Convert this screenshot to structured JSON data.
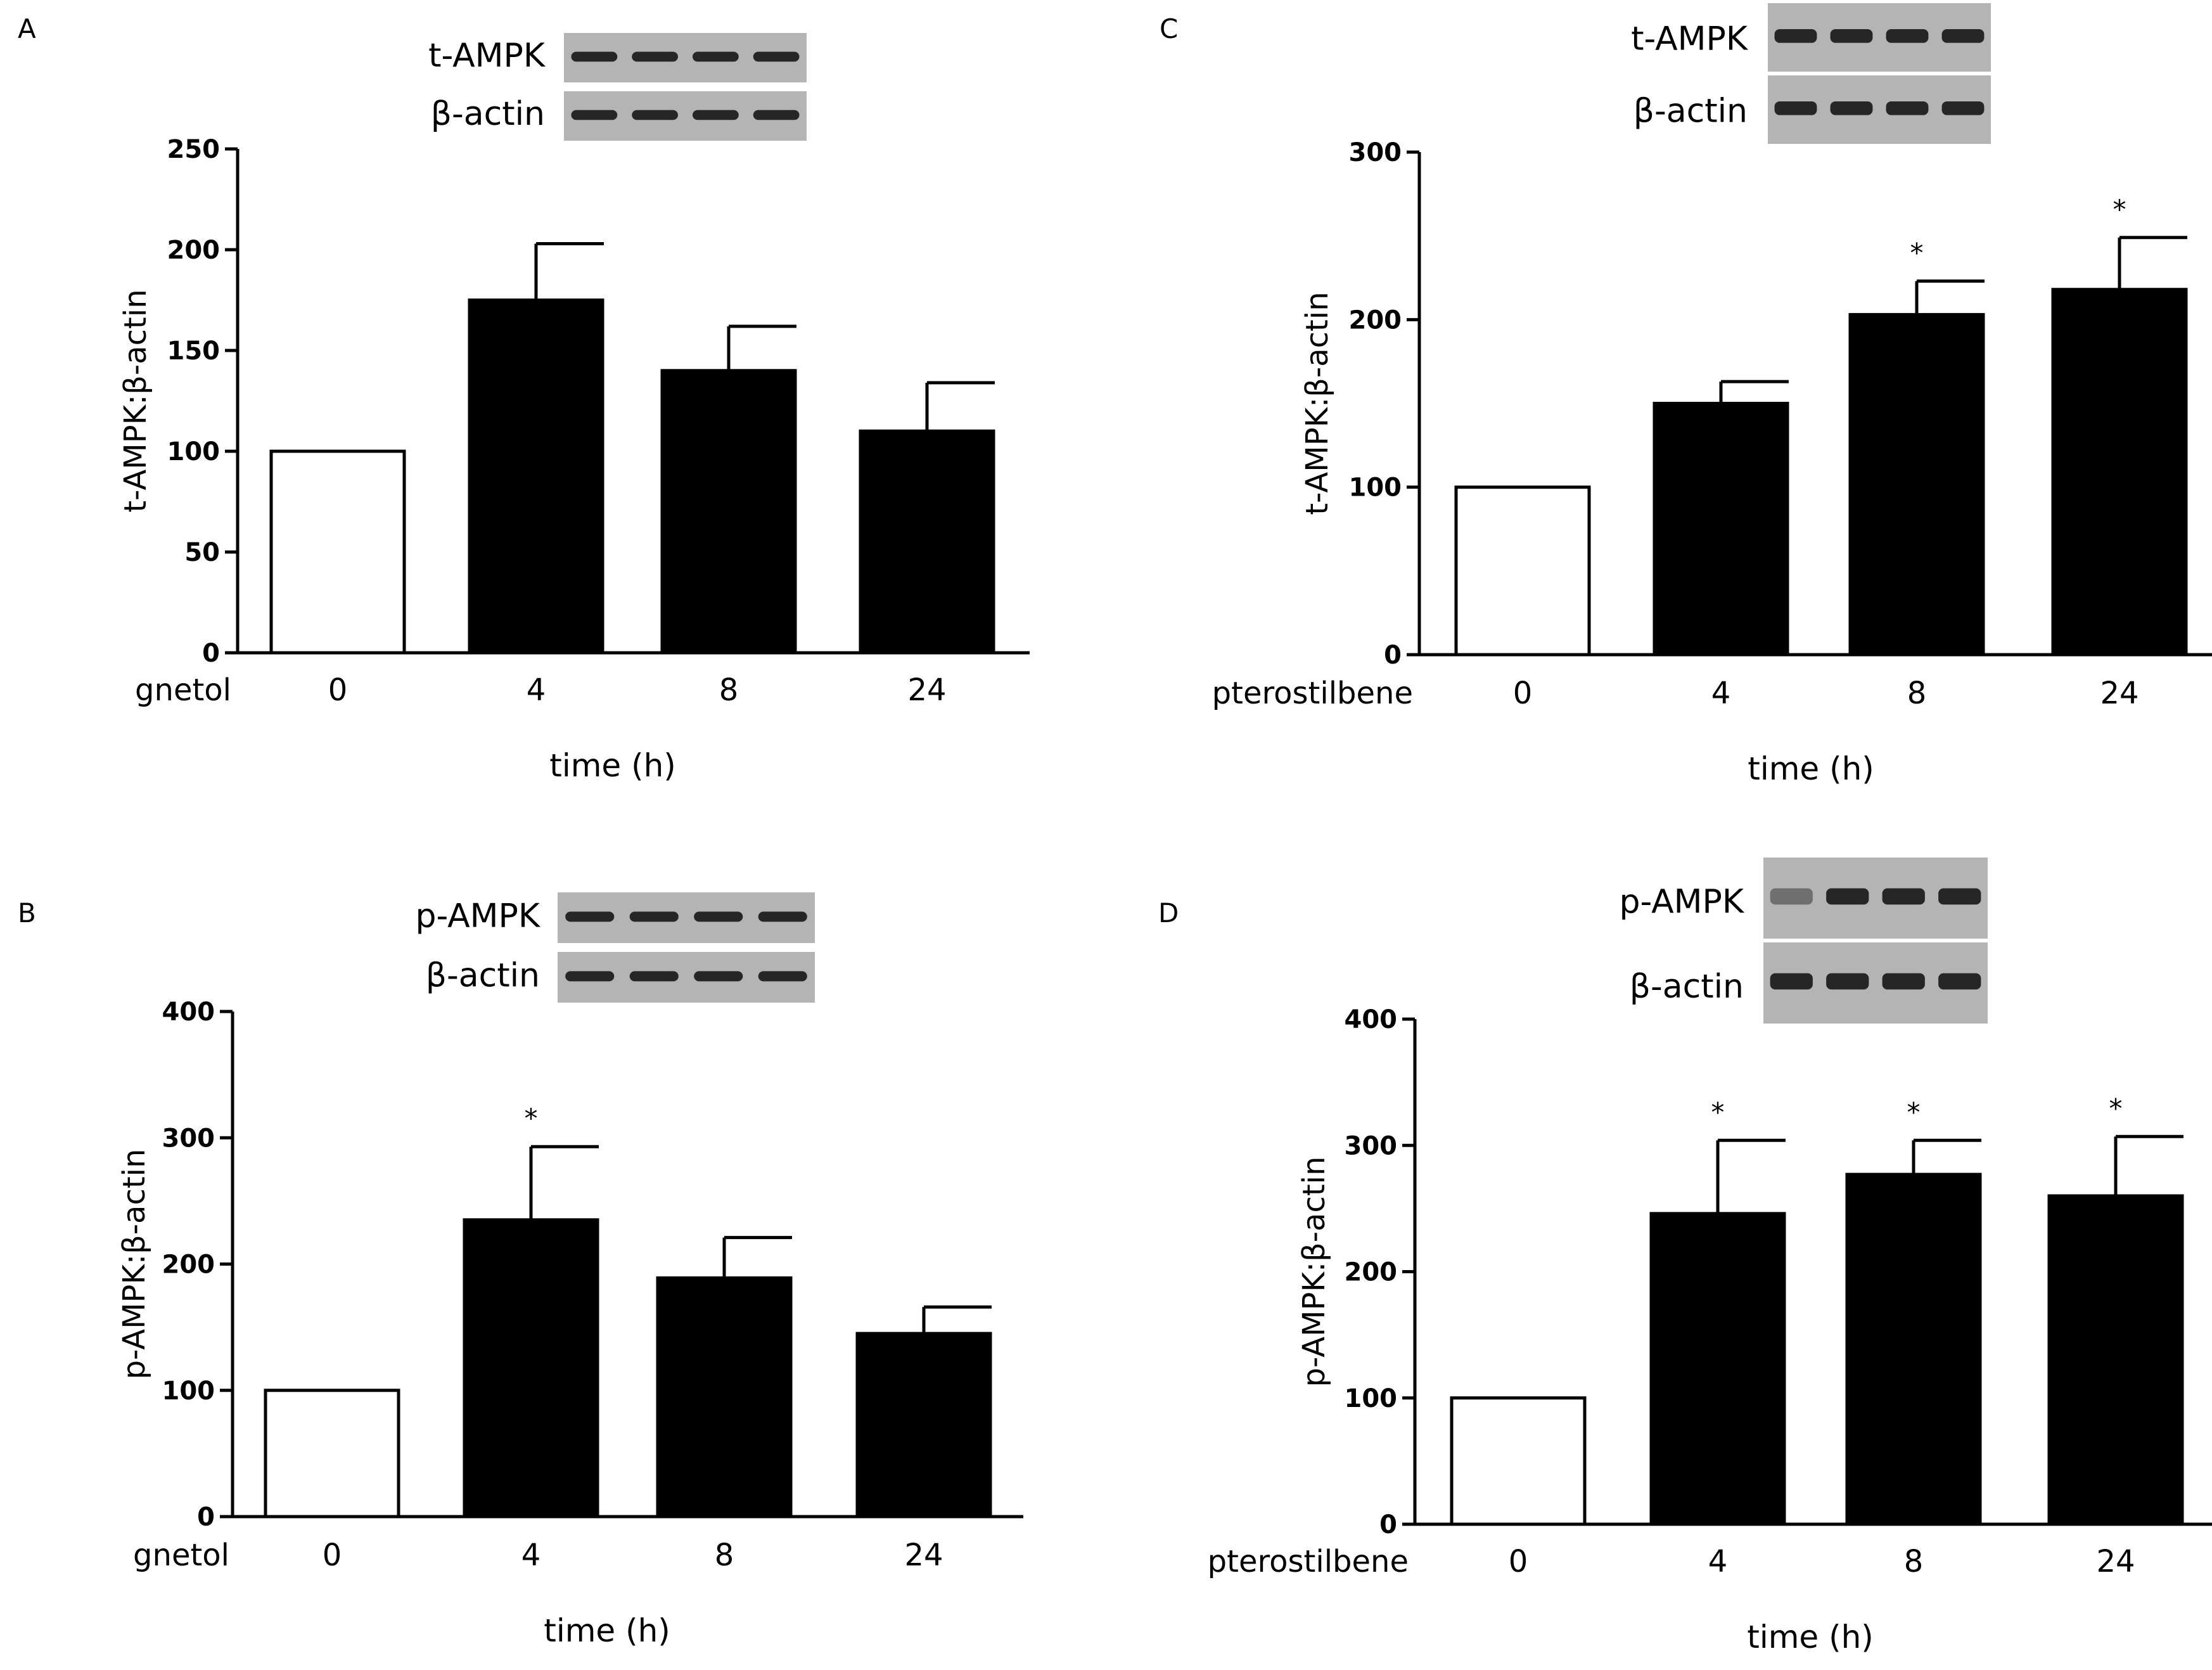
{
  "chart_data": [
    {
      "panel": "A",
      "type": "bar",
      "treatment": "gnetol",
      "categories": [
        "0",
        "4",
        "8",
        "24"
      ],
      "values": [
        100,
        175,
        140,
        110
      ],
      "errors": [
        0,
        28,
        22,
        24
      ],
      "significant": [
        false,
        false,
        false,
        false
      ],
      "ylabel": "t-AMPK:β-actin",
      "xlabel": "time (h)",
      "ylim": [
        0,
        250
      ],
      "yticks": [
        0,
        50,
        100,
        150,
        200,
        250
      ],
      "bar_colors": [
        "#ffffff",
        "#000000",
        "#000000",
        "#000000"
      ],
      "blot_labels": [
        "t-AMPK",
        "β-actin"
      ]
    },
    {
      "panel": "B",
      "type": "bar",
      "treatment": "gnetol",
      "categories": [
        "0",
        "4",
        "8",
        "24"
      ],
      "values": [
        100,
        235,
        189,
        145
      ],
      "errors": [
        0,
        58,
        32,
        21
      ],
      "significant": [
        false,
        true,
        false,
        false
      ],
      "ylabel": "p-AMPK:β-actin",
      "xlabel": "time (h)",
      "ylim": [
        0,
        400
      ],
      "yticks": [
        0,
        100,
        200,
        300,
        400
      ],
      "bar_colors": [
        "#ffffff",
        "#000000",
        "#000000",
        "#000000"
      ],
      "blot_labels": [
        "p-AMPK",
        "β-actin"
      ]
    },
    {
      "panel": "C",
      "type": "bar",
      "treatment": "pterostilbene",
      "categories": [
        "0",
        "4",
        "8",
        "24"
      ],
      "values": [
        100,
        150,
        203,
        218
      ],
      "errors": [
        0,
        13,
        20,
        31
      ],
      "significant": [
        false,
        false,
        true,
        true
      ],
      "ylabel": "t-AMPK:β-actin",
      "xlabel": "time (h)",
      "ylim": [
        0,
        300
      ],
      "yticks": [
        0,
        100,
        200,
        300
      ],
      "bar_colors": [
        "#ffffff",
        "#000000",
        "#000000",
        "#000000"
      ],
      "blot_labels": [
        "t-AMPK",
        "β-actin"
      ]
    },
    {
      "panel": "D",
      "type": "bar",
      "treatment": "pterostilbene",
      "categories": [
        "0",
        "4",
        "8",
        "24"
      ],
      "values": [
        100,
        246,
        277,
        260
      ],
      "errors": [
        0,
        58,
        27,
        47
      ],
      "significant": [
        false,
        true,
        true,
        true
      ],
      "ylabel": "p-AMPK:β-actin",
      "xlabel": "time (h)",
      "ylim": [
        0,
        400
      ],
      "yticks": [
        0,
        100,
        200,
        300,
        400
      ],
      "bar_colors": [
        "#ffffff",
        "#000000",
        "#000000",
        "#000000"
      ],
      "blot_labels": [
        "p-AMPK",
        "β-actin"
      ]
    }
  ],
  "significance_marker": "*"
}
